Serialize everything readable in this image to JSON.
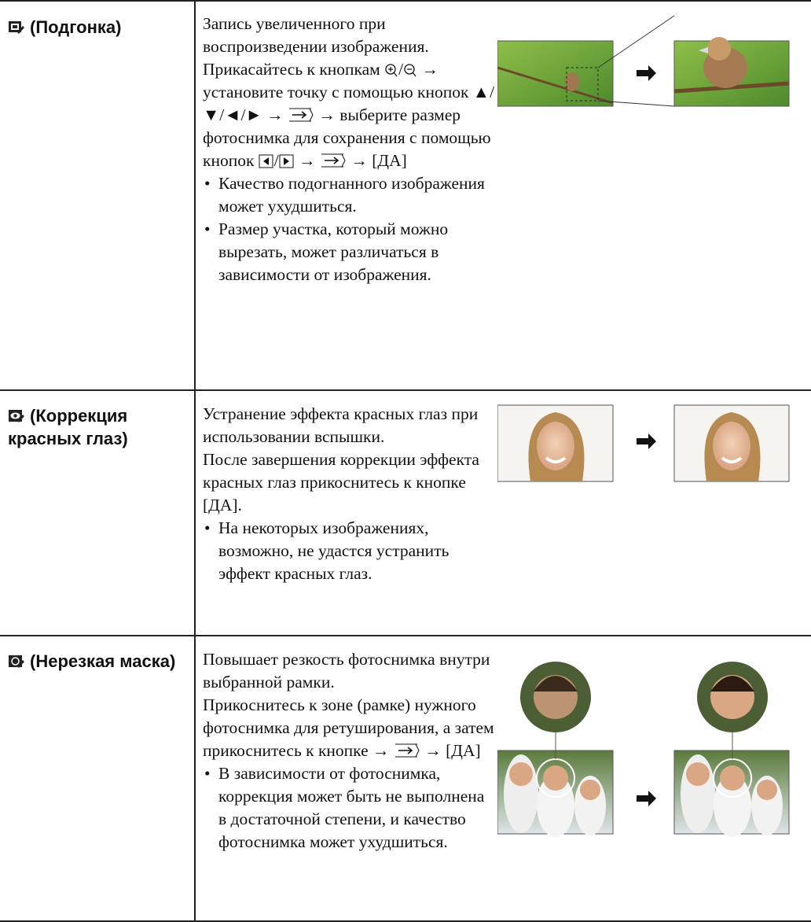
{
  "rows": [
    {
      "label": "(Подгонка)",
      "description": "Запись увеличенного при воспроизведении изображения.",
      "instruction": [
        "Прикасайтесь к кнопкам",
        "/",
        "→ установите точку с помощью кнопок ▲/▼/◄/► →",
        "→ выберите размер фотоснимка для сохранения с помощью кнопок",
        "/",
        "→",
        "→ [ДА]"
      ],
      "notes": [
        "Качество подогнанного изображения может ухудшиться.",
        "Размер участка, который можно вырезать, может различаться в зависимости от изображения."
      ]
    },
    {
      "label": "(Коррекция красных глаз)",
      "description": "Устранение эффекта красных глаз при использовании вспышки.",
      "instruction": [
        "После завершения коррекции эффекта красных глаз прикоснитесь к кнопке [ДА]."
      ],
      "notes": [
        "На некоторых изображениях, возможно, не удастся устранить эффект красных глаз."
      ]
    },
    {
      "label": "(Нерезкая маска)",
      "description": "Повышает резкость фотоснимка внутри выбранной рамки.",
      "instruction": [
        "Прикоснитесь к зоне (рамке) нужного фотоснимка для ретуширования, а затем прикоснитесь к кнопке →",
        "→ [ДА]"
      ],
      "notes": [
        "В зависимости от фотоснимка, коррекция может быть не выполнена в достаточной степени, и качество фотоснимка может ухудшиться."
      ]
    }
  ]
}
